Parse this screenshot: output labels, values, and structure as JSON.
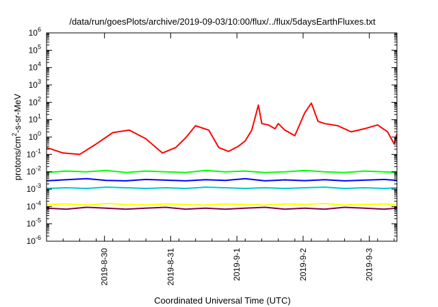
{
  "chart_data": {
    "type": "line",
    "title": "/data/run/goesPlots/archive/2019-09-03/10:00/flux/../flux/5daysEarthFluxes.txt",
    "xlabel": "Coordinated Universal Time (UTC)",
    "ylabel": {
      "base": "protons/cm",
      "sup": "2",
      "rest": "-s-sr-MeV"
    },
    "x_axis": {
      "start": "2019-08-29T03:00",
      "end": "2019-09-03T10:00",
      "ticks": [
        "2019-8-30",
        "2019-8-31",
        "2019-9-1",
        "2019-9-2",
        "2019-9-3"
      ]
    },
    "y_axis": {
      "scale": "log",
      "range": [
        1e-06,
        1000000.0
      ],
      "ticks": [
        {
          "base": "10",
          "exp": "-6"
        },
        {
          "base": "10",
          "exp": "-5"
        },
        {
          "base": "10",
          "exp": "-4"
        },
        {
          "base": "10",
          "exp": "-3"
        },
        {
          "base": "10",
          "exp": "-2"
        },
        {
          "base": "10",
          "exp": "-1"
        },
        {
          "base": "10",
          "exp": "0"
        },
        {
          "base": "10",
          "exp": "1"
        },
        {
          "base": "10",
          "exp": "2"
        },
        {
          "base": "10",
          "exp": "3"
        },
        {
          "base": "10",
          "exp": "4"
        },
        {
          "base": "10",
          "exp": "5"
        },
        {
          "base": "10",
          "exp": "6"
        }
      ]
    },
    "grid": false,
    "legend": "none",
    "series": [
      {
        "color": "#ff0000",
        "x": [
          0,
          0.25,
          0.5,
          0.75,
          1.0,
          1.25,
          1.5,
          1.75,
          1.95,
          2.1,
          2.25,
          2.45,
          2.6,
          2.75,
          2.9,
          3.0,
          3.1,
          3.2,
          3.25,
          3.35,
          3.45,
          3.5,
          3.6,
          3.75,
          3.9,
          4.0,
          4.1,
          4.2,
          4.4,
          4.6,
          4.8,
          5.0,
          5.15,
          5.25,
          5.29
        ],
        "values": [
          0.25,
          0.12,
          0.1,
          0.4,
          1.8,
          2.5,
          0.8,
          0.12,
          0.25,
          0.9,
          4.5,
          2.5,
          0.25,
          0.15,
          0.3,
          0.6,
          2.5,
          70,
          6,
          5,
          3,
          6,
          2.5,
          1.2,
          25,
          90,
          8,
          6,
          4.5,
          2,
          3,
          5,
          2,
          0.4,
          1.5
        ]
      },
      {
        "color": "#00ff00",
        "x": [
          0,
          0.3,
          0.6,
          0.9,
          1.2,
          1.5,
          1.8,
          2.1,
          2.4,
          2.7,
          3.0,
          3.3,
          3.6,
          3.9,
          4.2,
          4.5,
          4.8,
          5.1,
          5.29
        ],
        "values": [
          0.009,
          0.011,
          0.01,
          0.012,
          0.009,
          0.011,
          0.01,
          0.009,
          0.012,
          0.01,
          0.011,
          0.009,
          0.01,
          0.012,
          0.01,
          0.009,
          0.011,
          0.01,
          0.009
        ]
      },
      {
        "color": "#0000ff",
        "x": [
          0,
          0.3,
          0.6,
          0.9,
          1.2,
          1.5,
          1.8,
          2.1,
          2.4,
          2.7,
          3.0,
          3.3,
          3.6,
          3.9,
          4.2,
          4.5,
          4.8,
          5.1,
          5.29
        ],
        "values": [
          0.003,
          0.0035,
          0.004,
          0.0032,
          0.003,
          0.0036,
          0.0033,
          0.003,
          0.0035,
          0.0032,
          0.004,
          0.003,
          0.0034,
          0.0031,
          0.0035,
          0.003,
          0.0033,
          0.0036,
          0.0032
        ]
      },
      {
        "color": "#00c8c8",
        "x": [
          0,
          0.3,
          0.6,
          0.9,
          1.2,
          1.5,
          1.8,
          2.1,
          2.4,
          2.7,
          3.0,
          3.3,
          3.6,
          3.9,
          4.2,
          4.5,
          4.8,
          5.1,
          5.29
        ],
        "values": [
          0.0011,
          0.0012,
          0.0011,
          0.0013,
          0.0012,
          0.0011,
          0.0012,
          0.0011,
          0.0013,
          0.0012,
          0.0011,
          0.0012,
          0.0011,
          0.0012,
          0.0013,
          0.0011,
          0.0012,
          0.0011,
          0.0012
        ]
      },
      {
        "color": "#ffff00",
        "x": [
          0,
          0.3,
          0.6,
          0.9,
          1.2,
          1.5,
          1.8,
          2.1,
          2.4,
          2.7,
          3.0,
          3.3,
          3.6,
          3.9,
          4.2,
          4.5,
          4.8,
          5.1,
          5.29
        ],
        "values": [
          0.00013,
          0.00014,
          0.00012,
          0.00015,
          0.00013,
          0.00012,
          0.00014,
          0.00013,
          0.00012,
          0.00014,
          0.00013,
          0.00012,
          0.00014,
          0.00013,
          0.00015,
          0.00012,
          0.00013,
          0.00014,
          0.00013
        ]
      },
      {
        "color": "#800040",
        "x": [
          0,
          0.3,
          0.6,
          0.9,
          1.2,
          1.5,
          1.8,
          2.1,
          2.4,
          2.7,
          3.0,
          3.3,
          3.6,
          3.9,
          4.2,
          4.5,
          4.8,
          5.1,
          5.29
        ],
        "values": [
          8e-05,
          7e-05,
          9e-05,
          8e-05,
          7e-05,
          8e-05,
          9e-05,
          7e-05,
          8e-05,
          7e-05,
          8e-05,
          9e-05,
          7e-05,
          8e-05,
          7e-05,
          9e-05,
          8e-05,
          7e-05,
          8e-05
        ]
      }
    ]
  }
}
